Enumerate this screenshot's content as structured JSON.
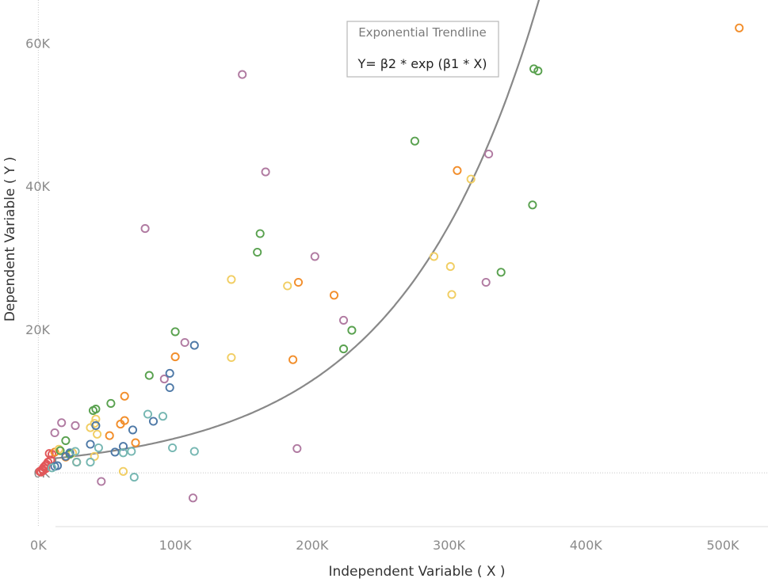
{
  "chart_data": {
    "type": "scatter",
    "xlabel": "Independent Variable ( X )",
    "ylabel": "Dependent Variable ( Y )",
    "xlim": [
      -28000,
      533000
    ],
    "ylim": [
      -7500,
      66000
    ],
    "x_ticks": [
      0,
      100000,
      200000,
      300000,
      400000,
      500000
    ],
    "x_tick_labels": [
      "0K",
      "100K",
      "200K",
      "300K",
      "400K",
      "500K"
    ],
    "y_ticks": [
      0,
      20000,
      40000,
      60000
    ],
    "y_tick_labels": [
      "0K",
      "20K",
      "40K",
      "60K"
    ],
    "grid": false,
    "zero_lines": true,
    "annotation": {
      "title": "Exponential Trendline",
      "formula": "Y= β2 * exp (β1 * X)"
    },
    "trendline": {
      "type": "exponential",
      "beta2": 1800,
      "beta1": 9.85e-06,
      "color": "#888888"
    },
    "series": [
      {
        "color": "#e15759",
        "points": [
          [
            1000,
            200
          ],
          [
            2000,
            100
          ],
          [
            3000,
            500
          ],
          [
            3500,
            300
          ],
          [
            4000,
            800
          ],
          [
            5000,
            1000
          ],
          [
            5500,
            600
          ],
          [
            6000,
            1200
          ],
          [
            7000,
            1500
          ],
          [
            8000,
            2700
          ],
          [
            9000,
            1800
          ],
          [
            10000,
            2600
          ]
        ]
      },
      {
        "color": "#f28e2b",
        "points": [
          [
            12000,
            2900
          ],
          [
            20000,
            2200
          ],
          [
            28000,
            1500
          ],
          [
            52000,
            5200
          ],
          [
            60000,
            6800
          ],
          [
            63000,
            7300
          ],
          [
            63000,
            10700
          ],
          [
            71000,
            4200
          ],
          [
            100000,
            16200
          ],
          [
            186000,
            15800
          ],
          [
            190000,
            26600
          ],
          [
            216000,
            24800
          ],
          [
            306000,
            42200
          ],
          [
            512000,
            62100
          ]
        ]
      },
      {
        "color": "#f1ce63",
        "points": [
          [
            15000,
            3300
          ],
          [
            25000,
            2800
          ],
          [
            38000,
            6300
          ],
          [
            41000,
            6900
          ],
          [
            42000,
            7500
          ],
          [
            43000,
            5400
          ],
          [
            41000,
            2300
          ],
          [
            62000,
            200
          ],
          [
            141000,
            16100
          ],
          [
            141000,
            27000
          ],
          [
            182000,
            26100
          ],
          [
            289000,
            30200
          ],
          [
            301000,
            28800
          ],
          [
            302000,
            24900
          ],
          [
            316000,
            41000
          ]
        ]
      },
      {
        "color": "#59a14f",
        "points": [
          [
            16000,
            3100
          ],
          [
            20000,
            4500
          ],
          [
            23000,
            2600
          ],
          [
            40000,
            8700
          ],
          [
            42000,
            8900
          ],
          [
            53000,
            9700
          ],
          [
            81000,
            13600
          ],
          [
            100000,
            19700
          ],
          [
            160000,
            30800
          ],
          [
            162000,
            33400
          ],
          [
            223000,
            17300
          ],
          [
            229000,
            19900
          ],
          [
            275000,
            46300
          ],
          [
            338000,
            28000
          ],
          [
            361000,
            37400
          ],
          [
            362000,
            56400
          ],
          [
            365000,
            56100
          ]
        ]
      },
      {
        "color": "#b07aa1",
        "points": [
          [
            12000,
            5600
          ],
          [
            17000,
            7000
          ],
          [
            27000,
            6600
          ],
          [
            46000,
            -1200
          ],
          [
            78000,
            34100
          ],
          [
            92000,
            13100
          ],
          [
            107000,
            18200
          ],
          [
            113000,
            -3500
          ],
          [
            149000,
            55600
          ],
          [
            166000,
            42000
          ],
          [
            189000,
            3400
          ],
          [
            202000,
            30200
          ],
          [
            223000,
            21300
          ],
          [
            327000,
            26600
          ],
          [
            329000,
            44500
          ]
        ]
      },
      {
        "color": "#4e79a7",
        "points": [
          [
            12000,
            900
          ],
          [
            14000,
            1000
          ],
          [
            20000,
            2300
          ],
          [
            23000,
            2800
          ],
          [
            38000,
            4000
          ],
          [
            42000,
            6600
          ],
          [
            56000,
            2900
          ],
          [
            62000,
            3700
          ],
          [
            69000,
            6000
          ],
          [
            84000,
            7200
          ],
          [
            96000,
            11900
          ],
          [
            96000,
            13900
          ],
          [
            114000,
            17800
          ]
        ]
      },
      {
        "color": "#76b7b2",
        "points": [
          [
            10000,
            700
          ],
          [
            27000,
            3000
          ],
          [
            28000,
            1500
          ],
          [
            38000,
            1500
          ],
          [
            44000,
            3500
          ],
          [
            62000,
            2800
          ],
          [
            68000,
            3000
          ],
          [
            70000,
            -600
          ],
          [
            80000,
            8200
          ],
          [
            91000,
            7900
          ],
          [
            98000,
            3500
          ],
          [
            114000,
            3000
          ]
        ]
      }
    ]
  }
}
